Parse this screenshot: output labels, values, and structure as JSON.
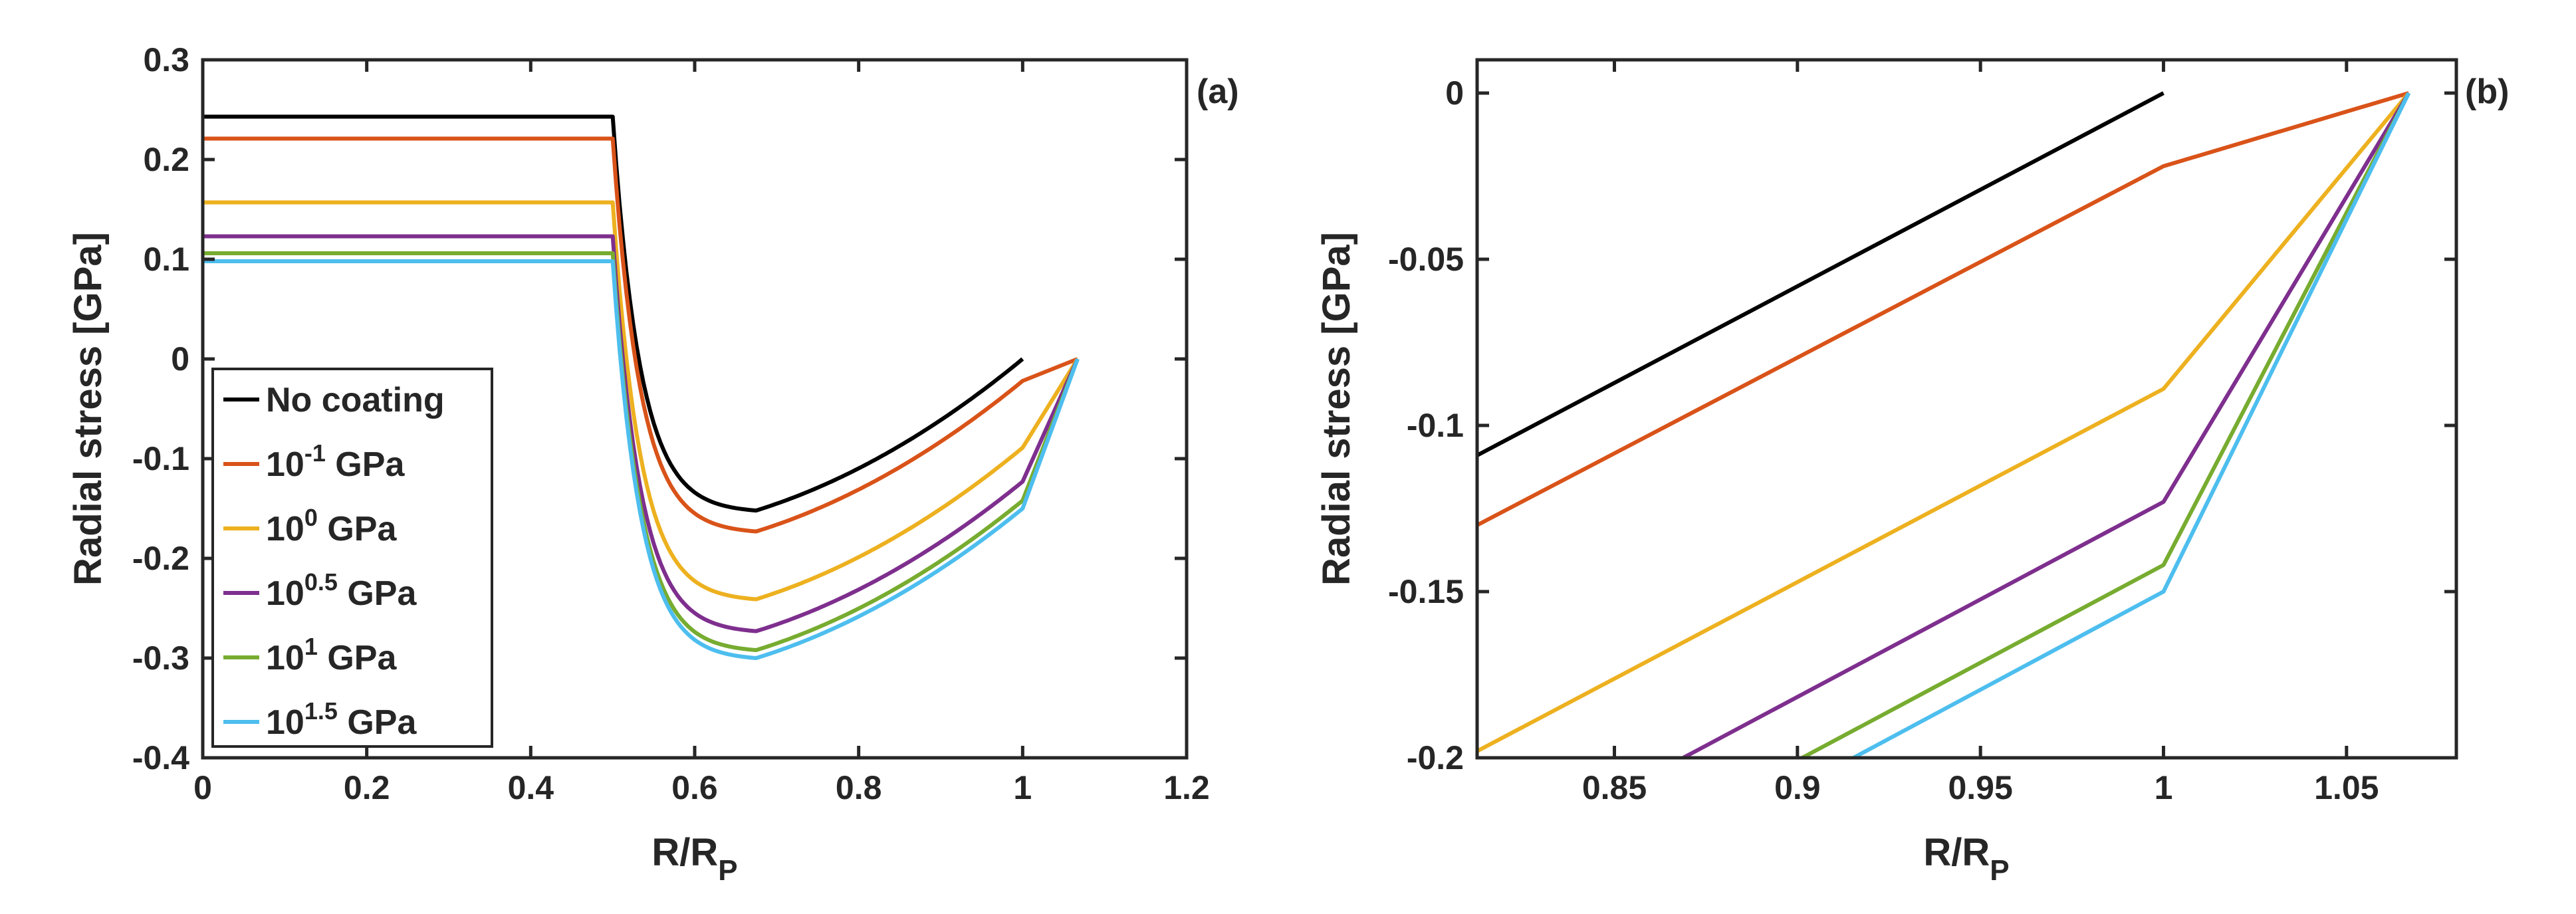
{
  "chart_data": [
    {
      "type": "line",
      "panel_label": "(a)",
      "xlabel": "R/R",
      "xlabel_sub": "P",
      "ylabel": "Radial stress [GPa]",
      "xlim": [
        0,
        1.2
      ],
      "ylim": [
        -0.4,
        0.3
      ],
      "xticks": [
        "0",
        "0.2",
        "0.4",
        "0.6",
        "0.8",
        "1",
        "1.2"
      ],
      "yticks": [
        "-0.4",
        "-0.3",
        "-0.2",
        "-0.1",
        "0",
        "0.1",
        "0.2",
        "0.3"
      ],
      "legend_position": "bottom-left",
      "series": [
        {
          "name": "No coating",
          "legend_base": "No coating",
          "legend_exp": "",
          "legend_unit": "",
          "color": "#000000",
          "plateau": 0.243,
          "min_value": -0.152,
          "r_end": 1.0,
          "value_at_1": 0.0
        },
        {
          "name": "10^-1 GPa",
          "legend_base": "10",
          "legend_exp": "-1",
          "legend_unit": " GPa",
          "color": "#D95319",
          "plateau": 0.221,
          "min_value": -0.173,
          "r_end": 1.067,
          "value_at_1": -0.022
        },
        {
          "name": "10^0 GPa",
          "legend_base": "10",
          "legend_exp": "0",
          "legend_unit": " GPa",
          "color": "#EDB120",
          "plateau": 0.157,
          "min_value": -0.241,
          "r_end": 1.067,
          "value_at_1": -0.089
        },
        {
          "name": "10^0.5 GPa",
          "legend_base": "10",
          "legend_exp": "0.5",
          "legend_unit": " GPa",
          "color": "#7E2F8E",
          "plateau": 0.123,
          "min_value": -0.273,
          "r_end": 1.067,
          "value_at_1": -0.123
        },
        {
          "name": "10^1 GPa",
          "legend_base": "10",
          "legend_exp": "1",
          "legend_unit": " GPa",
          "color": "#77AC30",
          "plateau": 0.106,
          "min_value": -0.292,
          "r_end": 1.067,
          "value_at_1": -0.142
        },
        {
          "name": "10^1.5 GPa",
          "legend_base": "10",
          "legend_exp": "1.5",
          "legend_unit": " GPa",
          "color": "#4DBEEE",
          "plateau": 0.098,
          "min_value": -0.3,
          "r_end": 1.067,
          "value_at_1": -0.15
        }
      ]
    },
    {
      "type": "line",
      "panel_label": "(b)",
      "xlabel": "R/R",
      "xlabel_sub": "P",
      "ylabel": "Radial stress [GPa]",
      "xlim": [
        0.8125,
        1.08
      ],
      "ylim": [
        -0.2,
        0.01
      ],
      "xticks": [
        "0.85",
        "0.9",
        "0.95",
        "1",
        "1.05"
      ],
      "yticks": [
        "-0.2",
        "-0.15",
        "-0.1",
        "-0.05",
        "0"
      ],
      "series": [
        {
          "name": "No coating",
          "color": "#000000",
          "points": [
            [
              0.8125,
              -0.109
            ],
            [
              1.0,
              0.0
            ]
          ]
        },
        {
          "name": "10^-1 GPa",
          "color": "#D95319",
          "points": [
            [
              0.8125,
              -0.13
            ],
            [
              1.0,
              -0.022
            ],
            [
              1.067,
              0.0
            ]
          ]
        },
        {
          "name": "10^0 GPa",
          "color": "#EDB120",
          "points": [
            [
              0.8125,
              -0.198
            ],
            [
              1.0,
              -0.089
            ],
            [
              1.067,
              0.0
            ]
          ]
        },
        {
          "name": "10^0.5 GPa",
          "color": "#7E2F8E",
          "points": [
            [
              0.8688,
              -0.2
            ],
            [
              1.0,
              -0.123
            ],
            [
              1.067,
              0.0
            ]
          ]
        },
        {
          "name": "10^1 GPa",
          "color": "#77AC30",
          "points": [
            [
              0.9013,
              -0.2
            ],
            [
              1.0,
              -0.142
            ],
            [
              1.067,
              0.0
            ]
          ]
        },
        {
          "name": "10^1.5 GPa",
          "color": "#4DBEEE",
          "points": [
            [
              0.9153,
              -0.2
            ],
            [
              1.0,
              -0.15
            ],
            [
              1.067,
              0.0
            ]
          ]
        }
      ]
    }
  ]
}
